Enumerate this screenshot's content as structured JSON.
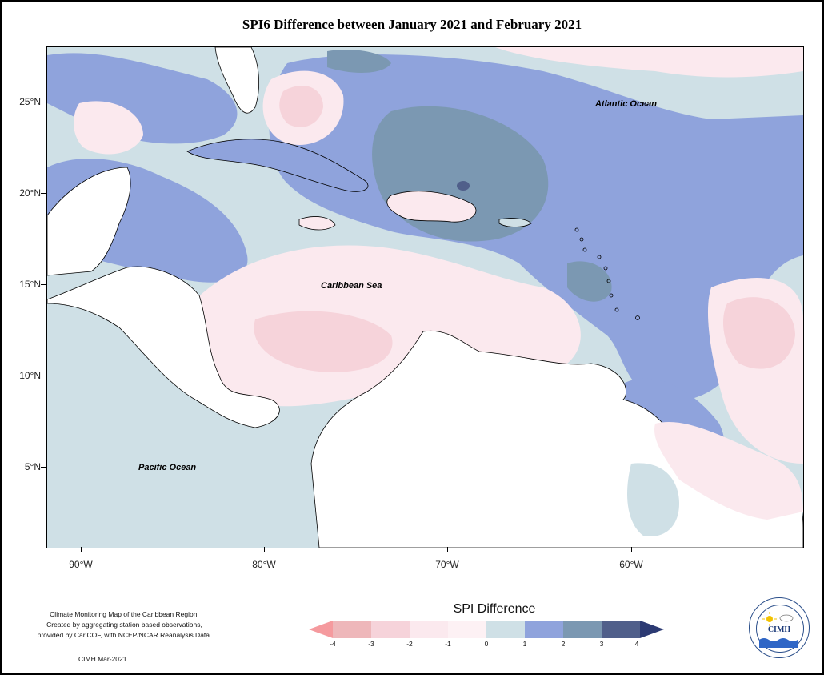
{
  "title": "SPI6 Difference between January 2021 and February 2021",
  "map": {
    "labels": {
      "atlantic": "Atlantic Ocean",
      "caribbean": "Caribbean Sea",
      "pacific": "Pacific Ocean"
    },
    "lat_ticks": [
      "25°N",
      "20°N",
      "15°N",
      "10°N",
      "5°N"
    ],
    "lon_ticks": [
      "90°W",
      "80°W",
      "70°W",
      "60°W"
    ]
  },
  "colors": {
    "neg4": "#f59a9e",
    "neg3": "#eeb7ba",
    "neg2": "#f6d3da",
    "neg1": "#fbe9ee",
    "zero": "#cfe0e6",
    "pos1": "#8fa3dc",
    "pos2": "#7b98b2",
    "pos3": "#505f8a",
    "pos4": "#2c3a73",
    "land": "#ffffff"
  },
  "legend": {
    "title": "SPI Difference",
    "ticks": [
      "-4",
      "-3",
      "-2",
      "-1",
      "0",
      "1",
      "2",
      "3",
      "4"
    ]
  },
  "credits": {
    "line1": "Climate Monitoring Map of the Caribbean Region.",
    "line2": "Created by aggregating station based observations,",
    "line3": "provided by CariCOF, with NCEP/NCAR Reanalysis Data.",
    "footer": "CIMH Mar-2021"
  },
  "logo": {
    "text": "CIMH",
    "icon": "cimh-logo-icon"
  }
}
